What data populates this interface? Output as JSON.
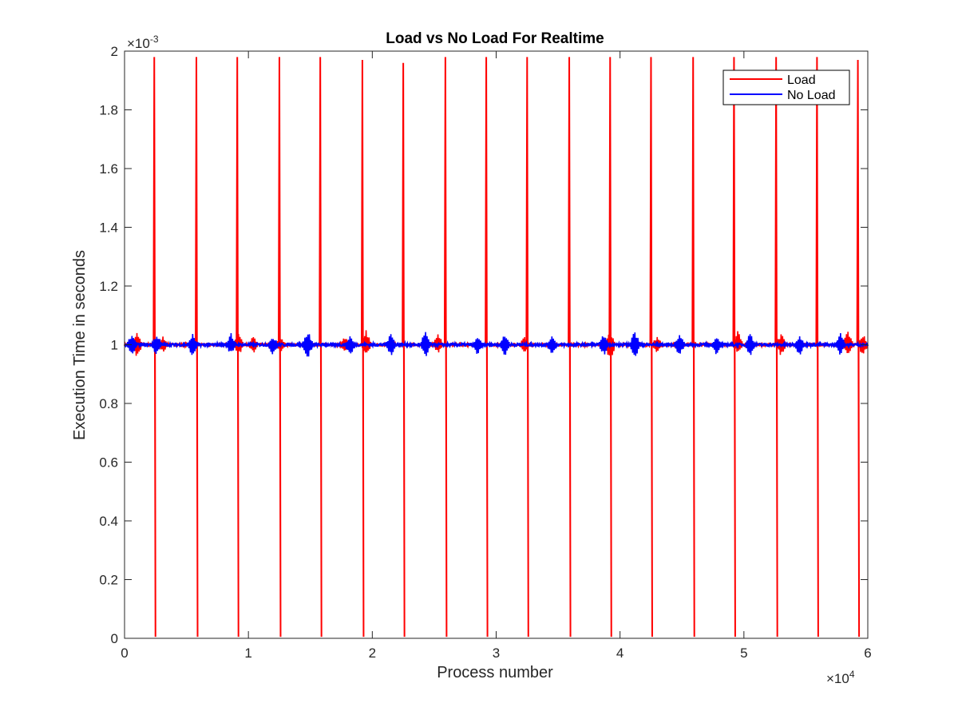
{
  "chart_data": {
    "type": "line",
    "title": "Load vs No Load For Realtime",
    "xlabel": "Process number",
    "ylabel": "Execution Time in seconds",
    "xlim": [
      0,
      60000
    ],
    "ylim": [
      0,
      0.002
    ],
    "x_ticks": [
      0,
      10000,
      20000,
      30000,
      40000,
      50000,
      60000
    ],
    "x_tick_labels": [
      "0",
      "1",
      "2",
      "3",
      "4",
      "5",
      "6"
    ],
    "y_ticks": [
      0,
      0.0002,
      0.0004,
      0.0006,
      0.0008,
      0.001,
      0.0012,
      0.0014,
      0.0016,
      0.0018,
      0.002
    ],
    "y_tick_labels": [
      "0",
      "0.2",
      "0.4",
      "0.6",
      "0.8",
      "1",
      "1.2",
      "1.4",
      "1.6",
      "1.8",
      "2"
    ],
    "x_multiplier": {
      "base": "×10",
      "exp": "4"
    },
    "y_multiplier": {
      "base": "×10",
      "exp": "-3"
    },
    "grid": false,
    "legend_position": "top-right",
    "baseline": 0.001,
    "series": [
      {
        "name": "Load",
        "color": "#ff0000",
        "spikes": [
          {
            "x": 2400,
            "high": 0.00198,
            "low": 5e-06
          },
          {
            "x": 5800,
            "high": 0.00198,
            "low": 5e-06
          },
          {
            "x": 9100,
            "high": 0.00198,
            "low": 5e-06
          },
          {
            "x": 12500,
            "high": 0.00198,
            "low": 5e-06
          },
          {
            "x": 15800,
            "high": 0.00198,
            "low": 5e-06
          },
          {
            "x": 19200,
            "high": 0.00197,
            "low": 5e-06
          },
          {
            "x": 22500,
            "high": 0.00196,
            "low": 5e-06
          },
          {
            "x": 25900,
            "high": 0.00198,
            "low": 5e-06
          },
          {
            "x": 29200,
            "high": 0.00198,
            "low": 5e-06
          },
          {
            "x": 32500,
            "high": 0.00198,
            "low": 5e-06
          },
          {
            "x": 35900,
            "high": 0.00198,
            "low": 5e-06
          },
          {
            "x": 39200,
            "high": 0.00198,
            "low": 5e-06
          },
          {
            "x": 42500,
            "high": 0.00198,
            "low": 5e-06
          },
          {
            "x": 45900,
            "high": 0.00198,
            "low": 5e-06
          },
          {
            "x": 49200,
            "high": 0.00198,
            "low": 5e-06
          },
          {
            "x": 52600,
            "high": 0.00198,
            "low": 5e-06
          },
          {
            "x": 55900,
            "high": 0.00198,
            "low": 5e-06
          },
          {
            "x": 59200,
            "high": 0.00197,
            "low": 5e-06
          }
        ],
        "noise": [
          {
            "x": 1000,
            "high": 0.00105,
            "low": 0.00095
          },
          {
            "x": 3100,
            "high": 0.00103,
            "low": 0.00097
          },
          {
            "x": 9200,
            "high": 0.00104,
            "low": 0.00096
          },
          {
            "x": 10400,
            "high": 0.00103,
            "low": 0.00097
          },
          {
            "x": 12600,
            "high": 0.00103,
            "low": 0.00097
          },
          {
            "x": 17800,
            "high": 0.00103,
            "low": 0.00097
          },
          {
            "x": 19500,
            "high": 0.00105,
            "low": 0.00096
          },
          {
            "x": 25300,
            "high": 0.00104,
            "low": 0.00097
          },
          {
            "x": 32300,
            "high": 0.00103,
            "low": 0.00097
          },
          {
            "x": 39200,
            "high": 0.00105,
            "low": 0.00094
          },
          {
            "x": 43000,
            "high": 0.00103,
            "low": 0.00097
          },
          {
            "x": 49500,
            "high": 0.00105,
            "low": 0.00097
          },
          {
            "x": 53000,
            "high": 0.00104,
            "low": 0.00096
          },
          {
            "x": 58400,
            "high": 0.00105,
            "low": 0.00096
          },
          {
            "x": 59600,
            "high": 0.00104,
            "low": 0.00096
          }
        ]
      },
      {
        "name": "No Load",
        "color": "#0000ff",
        "noise": [
          {
            "x": 600,
            "high": 0.00104,
            "low": 0.00096
          },
          {
            "x": 2600,
            "high": 0.00104,
            "low": 0.00096
          },
          {
            "x": 5500,
            "high": 0.00104,
            "low": 0.00095
          },
          {
            "x": 8600,
            "high": 0.00104,
            "low": 0.00096
          },
          {
            "x": 12000,
            "high": 0.00103,
            "low": 0.00096
          },
          {
            "x": 14800,
            "high": 0.00105,
            "low": 0.00095
          },
          {
            "x": 18200,
            "high": 0.00103,
            "low": 0.00096
          },
          {
            "x": 21500,
            "high": 0.00104,
            "low": 0.00096
          },
          {
            "x": 24300,
            "high": 0.00105,
            "low": 0.00095
          },
          {
            "x": 28500,
            "high": 0.00103,
            "low": 0.00096
          },
          {
            "x": 30700,
            "high": 0.00104,
            "low": 0.00096
          },
          {
            "x": 34500,
            "high": 0.00103,
            "low": 0.00096
          },
          {
            "x": 38700,
            "high": 0.00104,
            "low": 0.00096
          },
          {
            "x": 41200,
            "high": 0.00105,
            "low": 0.00095
          },
          {
            "x": 44800,
            "high": 0.00104,
            "low": 0.00096
          },
          {
            "x": 47800,
            "high": 0.00103,
            "low": 0.00096
          },
          {
            "x": 50500,
            "high": 0.00104,
            "low": 0.00096
          },
          {
            "x": 54500,
            "high": 0.00103,
            "low": 0.00096
          },
          {
            "x": 57800,
            "high": 0.00104,
            "low": 0.00096
          }
        ]
      }
    ]
  }
}
